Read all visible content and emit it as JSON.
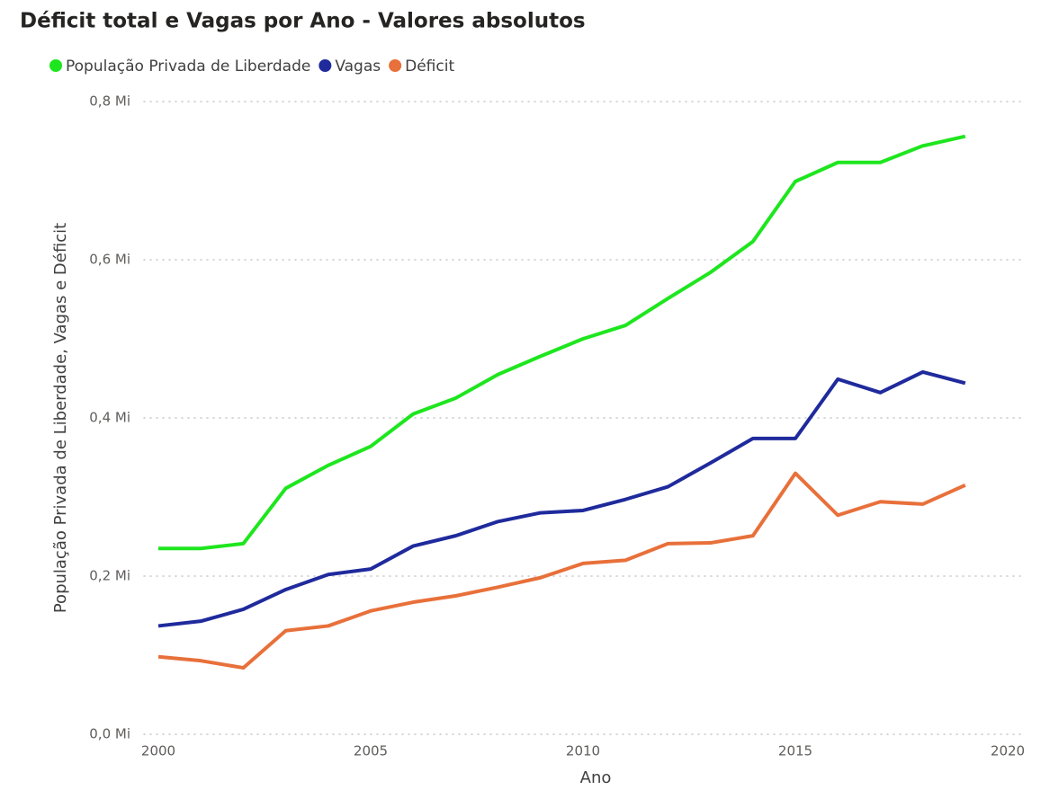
{
  "chart_data": {
    "type": "line",
    "title": "Déficit total e Vagas por Ano - Valores absolutos",
    "x_label": "Ano",
    "y_label": "População Privada de Liberdade, Vagas e Déficit",
    "x": [
      2000,
      2001,
      2002,
      2003,
      2004,
      2005,
      2006,
      2007,
      2008,
      2009,
      2010,
      2011,
      2012,
      2013,
      2014,
      2015,
      2016,
      2017,
      2018,
      2019
    ],
    "series": [
      {
        "name": "População Privada de Liberdade",
        "color": "#1ee61e",
        "values": [
          0.235,
          0.235,
          0.241,
          0.311,
          0.34,
          0.364,
          0.405,
          0.425,
          0.455,
          0.478,
          0.5,
          0.517,
          0.551,
          0.584,
          0.623,
          0.699,
          0.723,
          0.723,
          0.744,
          0.756
        ]
      },
      {
        "name": "Vagas",
        "color": "#1f2a9c",
        "values": [
          0.137,
          0.143,
          0.158,
          0.183,
          0.202,
          0.209,
          0.238,
          0.251,
          0.269,
          0.28,
          0.283,
          0.297,
          0.313,
          0.343,
          0.374,
          0.374,
          0.449,
          0.432,
          0.458,
          0.444
        ]
      },
      {
        "name": "Déficit",
        "color": "#e8703a",
        "values": [
          0.098,
          0.093,
          0.084,
          0.131,
          0.137,
          0.156,
          0.167,
          0.175,
          0.186,
          0.198,
          0.216,
          0.22,
          0.241,
          0.242,
          0.251,
          0.33,
          0.277,
          0.294,
          0.291,
          0.315
        ]
      }
    ],
    "xlim": [
      2000,
      2020
    ],
    "xticks": [
      2000,
      2005,
      2010,
      2015,
      2020
    ],
    "ylim": [
      0,
      0.8
    ],
    "yticks": [
      {
        "value": 0,
        "label": "0,0 Mi"
      },
      {
        "value": 0.2,
        "label": "0,2 Mi"
      },
      {
        "value": 0.4,
        "label": "0,4 Mi"
      },
      {
        "value": 0.6,
        "label": "0,6 Mi"
      },
      {
        "value": 0.8,
        "label": "0,8 Mi"
      }
    ],
    "grid": true,
    "legend": "top-left"
  }
}
